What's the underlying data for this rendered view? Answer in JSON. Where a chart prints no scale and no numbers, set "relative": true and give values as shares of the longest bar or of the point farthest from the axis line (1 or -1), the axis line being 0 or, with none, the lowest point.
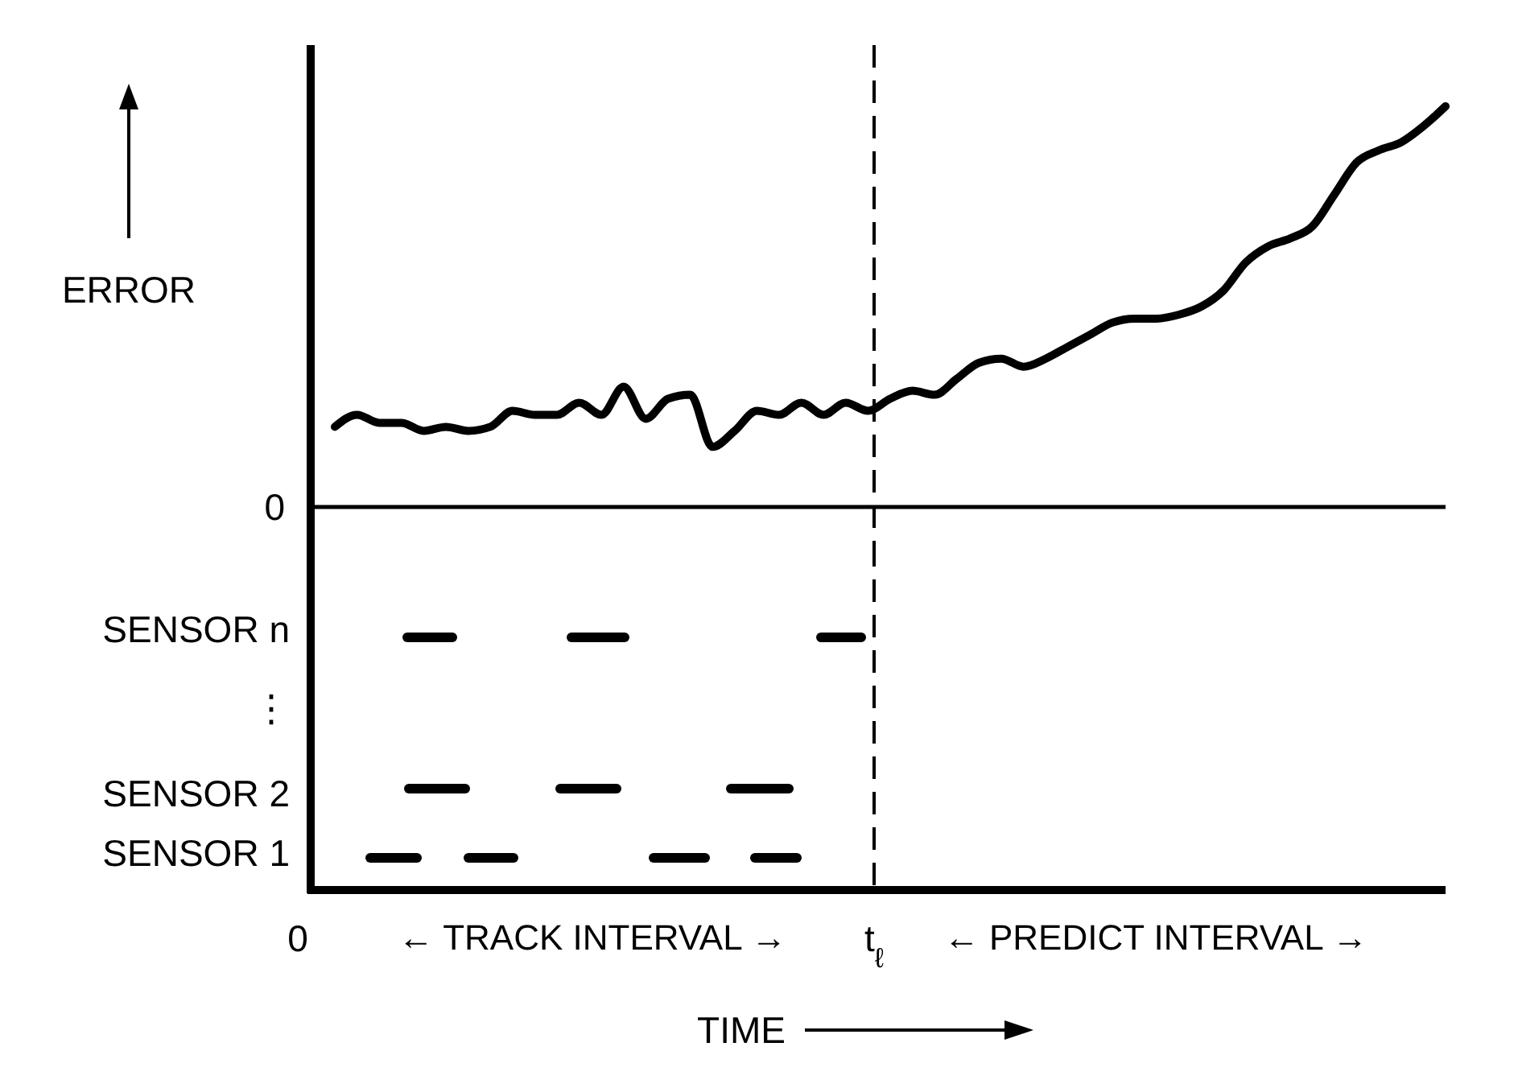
{
  "chart_data": [
    {
      "type": "line",
      "relative": true,
      "ylabel": "ERROR",
      "line_style": "solid",
      "ref_lines": [
        {
          "axis": "y",
          "value": 0,
          "label": "0"
        }
      ],
      "categories": [
        null,
        null,
        null,
        null,
        null,
        null,
        null,
        null,
        null,
        null,
        null,
        null,
        null,
        null,
        null,
        null,
        null,
        null,
        null,
        null,
        null,
        null,
        null,
        null,
        null,
        null,
        null,
        null,
        null,
        null,
        null,
        null,
        null,
        null,
        null,
        null,
        null,
        null,
        null,
        null,
        null,
        null,
        null,
        null,
        null,
        null,
        null,
        null,
        null,
        null,
        null
      ],
      "series": [
        {
          "color": "#000000",
          "values": [
            0.2,
            0.23,
            0.21,
            0.21,
            0.19,
            0.2,
            0.19,
            0.2,
            0.24,
            0.23,
            0.23,
            0.26,
            0.23,
            0.3,
            0.22,
            0.27,
            0.28,
            0.15,
            0.19,
            0.24,
            0.23,
            0.26,
            0.23,
            0.26,
            0.24,
            0.27,
            0.29,
            0.28,
            0.32,
            0.36,
            0.37,
            0.35,
            0.37,
            0.4,
            0.43,
            0.46,
            0.47,
            0.47,
            0.48,
            0.5,
            0.54,
            0.61,
            0.65,
            0.67,
            0.7,
            0.78,
            0.86,
            0.89,
            0.91,
            0.95,
            1.0
          ]
        }
      ]
    },
    {
      "type": "other",
      "xlabel": "TIME",
      "annotations": [
        "SENSOR n",
        "⋮",
        "SENSOR 2",
        "SENSOR 1",
        "0",
        "← TRACK INTERVAL →",
        "t$_{ℓ}$",
        "← PREDICT INTERVAL →"
      ]
    }
  ]
}
